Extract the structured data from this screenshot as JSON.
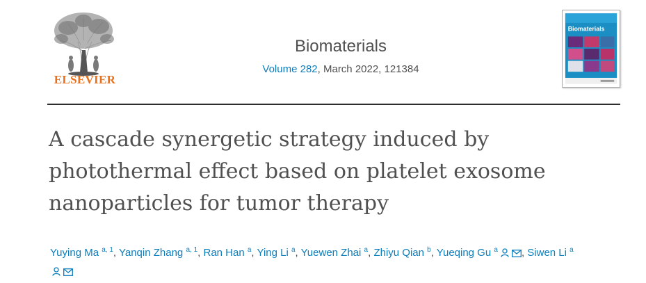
{
  "publisher": {
    "name": "ELSEVIER"
  },
  "journal": {
    "title": "Biomaterials",
    "volume_label": "Volume 282",
    "date_and_id": ", March 2022, 121384"
  },
  "cover": {
    "title": "Biomaterials"
  },
  "article": {
    "title_lines": [
      "A cascade synergetic strategy induced by",
      "photothermal effect based on platelet exosome",
      "nanoparticles for tumor therapy"
    ]
  },
  "authors": [
    {
      "name": "Yuying Ma",
      "sup": "a, 1"
    },
    {
      "name": "Yanqin Zhang",
      "sup": "a, 1"
    },
    {
      "name": "Ran Han",
      "sup": "a"
    },
    {
      "name": "Ying Li",
      "sup": "a"
    },
    {
      "name": "Yuewen Zhai",
      "sup": "a"
    },
    {
      "name": "Zhiyu Qian",
      "sup": "b"
    },
    {
      "name": "Yueqing Gu",
      "sup": "a",
      "icons": [
        "person-icon",
        "envelope-icon"
      ]
    },
    {
      "name": "Siwen Li",
      "sup": "a",
      "icons": [
        "person-icon",
        "envelope-icon"
      ]
    }
  ],
  "colors": {
    "link": "#0c7dbb",
    "publisher_orange": "#e9711c",
    "text": "#505050",
    "rule": "#2e2e2e"
  }
}
